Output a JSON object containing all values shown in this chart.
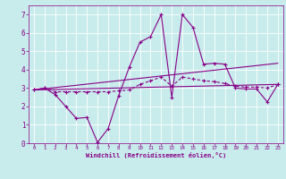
{
  "x": [
    0,
    1,
    2,
    3,
    4,
    5,
    6,
    7,
    8,
    9,
    10,
    11,
    12,
    13,
    14,
    15,
    16,
    17,
    18,
    19,
    20,
    21,
    22,
    23
  ],
  "line1": [
    2.9,
    3.0,
    2.65,
    2.0,
    1.35,
    1.4,
    0.05,
    0.8,
    2.6,
    4.15,
    5.5,
    5.8,
    7.0,
    2.5,
    7.0,
    6.3,
    4.3,
    4.35,
    4.3,
    3.0,
    2.95,
    2.95,
    2.25,
    3.2
  ],
  "line2": [
    2.9,
    3.0,
    2.8,
    2.8,
    2.8,
    2.8,
    2.8,
    2.8,
    2.85,
    2.9,
    3.2,
    3.4,
    3.6,
    3.1,
    3.6,
    3.5,
    3.4,
    3.35,
    3.25,
    3.1,
    3.05,
    3.05,
    3.0,
    3.2
  ],
  "line3_x": [
    0,
    23
  ],
  "line3_y": [
    2.9,
    3.2
  ],
  "line4_x": [
    0,
    23
  ],
  "line4_y": [
    2.9,
    4.35
  ],
  "color": "#880088",
  "bg_color": "#c8ecec",
  "xlabel": "Windchill (Refroidissement éolien,°C)",
  "ylim": [
    0,
    7.5
  ],
  "xlim": [
    -0.5,
    23.5
  ],
  "yticks": [
    0,
    1,
    2,
    3,
    4,
    5,
    6,
    7
  ],
  "xticks": [
    0,
    1,
    2,
    3,
    4,
    5,
    6,
    7,
    8,
    9,
    10,
    11,
    12,
    13,
    14,
    15,
    16,
    17,
    18,
    19,
    20,
    21,
    22,
    23
  ]
}
